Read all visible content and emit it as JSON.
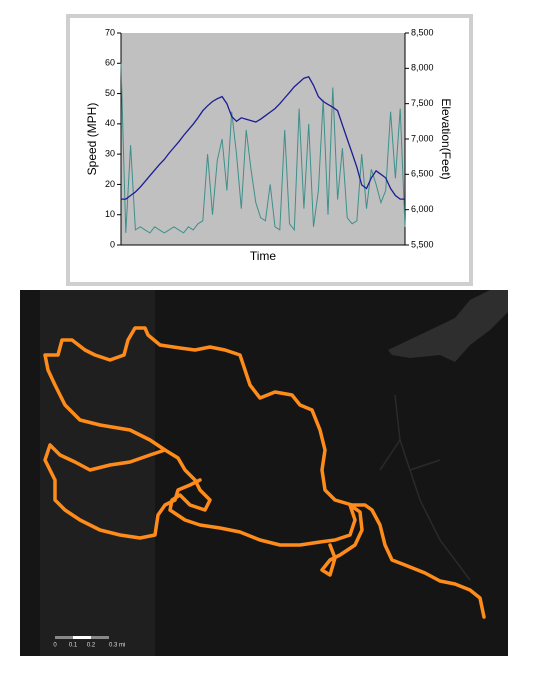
{
  "chart_data": {
    "type": "line",
    "x_label": "Time",
    "y_label": "Speed (MPH)",
    "y2_label": "Elevation(Feet)",
    "categories": [
      null,
      null,
      null,
      null,
      null,
      null,
      null,
      null,
      null,
      null,
      null,
      null,
      null,
      null,
      null,
      null,
      null,
      null,
      null,
      null,
      null,
      null,
      null,
      null,
      null,
      null,
      null,
      null,
      null,
      null,
      null,
      null,
      null,
      null,
      null,
      null,
      null,
      null,
      null,
      null,
      null,
      null,
      null,
      null,
      null,
      null,
      null,
      null,
      null,
      null,
      null,
      null,
      null,
      null,
      null,
      null,
      null,
      null,
      null,
      null
    ],
    "series": [
      {
        "name": "Speed",
        "color": "#3f8f8a",
        "axis": "y",
        "values": [
          60,
          4,
          33,
          5,
          6,
          5,
          4,
          6,
          5,
          4,
          5,
          6,
          5,
          4,
          6,
          5,
          7,
          8,
          30,
          10,
          28,
          35,
          18,
          44,
          30,
          12,
          38,
          25,
          14,
          9,
          8,
          20,
          6,
          5,
          38,
          7,
          5,
          45,
          12,
          40,
          6,
          18,
          48,
          10,
          52,
          15,
          32,
          9,
          7,
          8,
          30,
          12,
          25,
          20,
          14,
          18,
          44,
          22,
          45,
          6
        ]
      },
      {
        "name": "Elevation",
        "color": "#1c1c96",
        "axis": "y2",
        "values": [
          6150,
          6150,
          6200,
          6250,
          6320,
          6400,
          6480,
          6560,
          6640,
          6710,
          6800,
          6880,
          6960,
          7050,
          7130,
          7210,
          7300,
          7400,
          7470,
          7530,
          7570,
          7600,
          7500,
          7320,
          7250,
          7300,
          7280,
          7260,
          7240,
          7280,
          7330,
          7380,
          7430,
          7500,
          7580,
          7660,
          7740,
          7800,
          7860,
          7880,
          7760,
          7600,
          7530,
          7490,
          7450,
          7400,
          7200,
          7000,
          6800,
          6600,
          6350,
          6300,
          6450,
          6550,
          6500,
          6450,
          6300,
          6200,
          6150,
          6150
        ]
      }
    ],
    "ylim": [
      0,
      70
    ],
    "yticks": [
      0,
      10,
      20,
      30,
      40,
      50,
      60,
      70
    ],
    "y2lim": [
      5500,
      8500
    ],
    "y2ticks": [
      {
        "value": 5500,
        "label": "5,500"
      },
      {
        "value": 6000,
        "label": "6,000"
      },
      {
        "value": 6500,
        "label": "6,500"
      },
      {
        "value": 7000,
        "label": "7,000"
      },
      {
        "value": 7500,
        "label": "7,500"
      },
      {
        "value": 8000,
        "label": "8,000"
      },
      {
        "value": 8500,
        "label": "8,500"
      }
    ],
    "plot_background": "#c0c0c0"
  },
  "map": {
    "scale_labels": [
      "0",
      "0.1",
      "0.2",
      "0.3 mi"
    ]
  }
}
